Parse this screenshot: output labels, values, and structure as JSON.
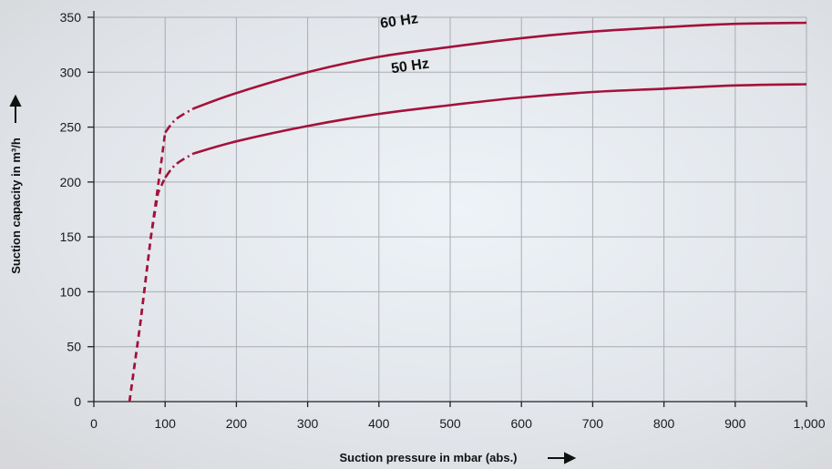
{
  "chart_data": {
    "type": "line",
    "xlabel": "Suction pressure in mbar (abs.)",
    "ylabel": "Suction capacity in m³/h",
    "xlim": [
      0,
      1000
    ],
    "ylim": [
      0,
      350
    ],
    "x_ticks": [
      0,
      100,
      200,
      300,
      400,
      500,
      600,
      700,
      800,
      900,
      1000
    ],
    "x_tick_labels": [
      "0",
      "100",
      "200",
      "300",
      "400",
      "500",
      "600",
      "700",
      "800",
      "900",
      "1,000"
    ],
    "y_ticks": [
      0,
      50,
      100,
      150,
      200,
      250,
      300,
      350
    ],
    "y_tick_labels": [
      "0",
      "50",
      "100",
      "150",
      "200",
      "250",
      "300",
      "350"
    ],
    "grid": true,
    "line_color": "#a3123a",
    "series": [
      {
        "name": "60 Hz",
        "dashed": [
          [
            50,
            0
          ],
          [
            65,
            70
          ],
          [
            80,
            150
          ],
          [
            93,
            210
          ],
          [
            100,
            245
          ]
        ],
        "dash_dot": [
          [
            100,
            245
          ],
          [
            115,
            257
          ],
          [
            140,
            267
          ]
        ],
        "solid": [
          [
            140,
            267
          ],
          [
            200,
            281
          ],
          [
            300,
            300
          ],
          [
            400,
            314
          ],
          [
            500,
            323
          ],
          [
            600,
            331
          ],
          [
            700,
            337
          ],
          [
            800,
            341
          ],
          [
            900,
            344
          ],
          [
            1000,
            345
          ]
        ]
      },
      {
        "name": "50 Hz",
        "dashed": [
          [
            50,
            0
          ],
          [
            65,
            70
          ],
          [
            80,
            150
          ],
          [
            90,
            190
          ],
          [
            100,
            204
          ]
        ],
        "dash_dot": [
          [
            100,
            204
          ],
          [
            115,
            216
          ],
          [
            140,
            226
          ]
        ],
        "solid": [
          [
            140,
            226
          ],
          [
            200,
            237
          ],
          [
            300,
            251
          ],
          [
            400,
            262
          ],
          [
            500,
            270
          ],
          [
            600,
            277
          ],
          [
            700,
            282
          ],
          [
            800,
            285
          ],
          [
            900,
            288
          ],
          [
            1000,
            289
          ]
        ]
      }
    ]
  }
}
